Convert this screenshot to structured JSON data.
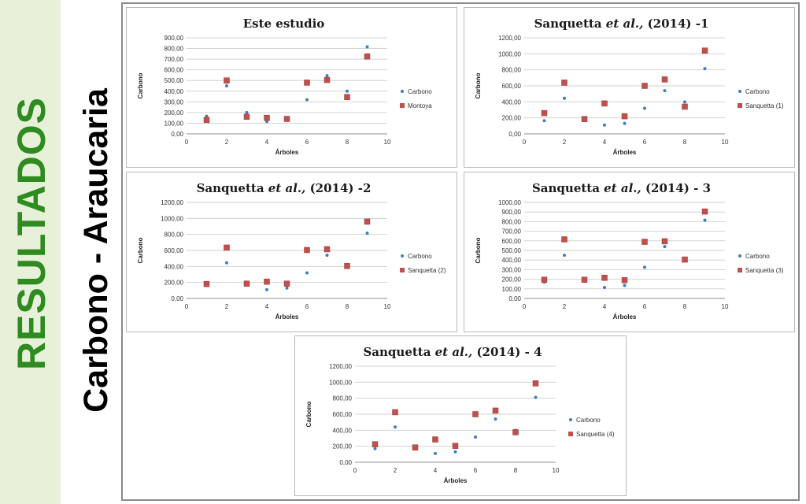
{
  "sidebar": {
    "title_results": "RESULTADOS",
    "title_subject": "Carbono - Araucaria"
  },
  "colors": {
    "carbono": "#3f7ebf",
    "comparison": "#c0504d",
    "sidebar_bg": "#e7f1d9",
    "results_text": "#2e8b1f"
  },
  "chart_data": [
    {
      "type": "scatter",
      "title_main": "Este estudio",
      "title_italic": "",
      "title_suffix": "",
      "xlabel": "Árboles",
      "ylabel": "Carbono",
      "xlim": [
        0,
        10
      ],
      "ylim": [
        0,
        900
      ],
      "yticks_step": 100,
      "xtick_labels": [
        "0",
        "2",
        "4",
        "6",
        "8",
        "10"
      ],
      "ytick_labels": [
        "0,00",
        "100,00",
        "200,00",
        "300,00",
        "400,00",
        "500,00",
        "600,00",
        "700,00",
        "800,00",
        "900,00"
      ],
      "series": [
        {
          "name": "Carbono",
          "marker": "dot",
          "x": [
            1,
            2,
            3,
            4,
            5,
            6,
            7,
            8,
            9
          ],
          "y": [
            165,
            450,
            200,
            115,
            135,
            320,
            545,
            400,
            815
          ]
        },
        {
          "name": "Montoya",
          "marker": "square",
          "x": [
            1,
            2,
            3,
            4,
            5,
            6,
            7,
            8,
            9
          ],
          "y": [
            130,
            500,
            160,
            150,
            140,
            480,
            505,
            345,
            725
          ]
        }
      ],
      "legend": "right"
    },
    {
      "type": "scatter",
      "title_main": "Sanquetta ",
      "title_italic": "et al.,",
      "title_suffix": " (2014) -1",
      "xlabel": "Árboles",
      "ylabel": "Carbono",
      "xlim": [
        0,
        10
      ],
      "ylim": [
        0,
        1200
      ],
      "yticks_step": 200,
      "xtick_labels": [
        "0",
        "2",
        "4",
        "6",
        "8",
        "10"
      ],
      "ytick_labels": [
        "0,00",
        "200,00",
        "400,00",
        "600,00",
        "800,00",
        "1000,00",
        "1200,00"
      ],
      "series": [
        {
          "name": "Carbono",
          "marker": "dot",
          "x": [
            1,
            2,
            3,
            4,
            5,
            6,
            7,
            8,
            9
          ],
          "y": [
            165,
            445,
            195,
            110,
            130,
            320,
            540,
            400,
            815
          ]
        },
        {
          "name": "Sanquetta (1)",
          "marker": "square",
          "x": [
            1,
            2,
            3,
            4,
            5,
            6,
            7,
            8,
            9
          ],
          "y": [
            260,
            640,
            185,
            380,
            220,
            600,
            680,
            340,
            1040
          ]
        }
      ],
      "legend": "right"
    },
    {
      "type": "scatter",
      "title_main": "Sanquetta ",
      "title_italic": "et al.,",
      "title_suffix": " (2014) -2",
      "xlabel": "Árboles",
      "ylabel": "Carbono",
      "xlim": [
        0,
        10
      ],
      "ylim": [
        0,
        1200
      ],
      "yticks_step": 200,
      "xtick_labels": [
        "0",
        "2",
        "4",
        "6",
        "8",
        "10"
      ],
      "ytick_labels": [
        "0,00",
        "200,00",
        "400,00",
        "600,00",
        "800,00",
        "1000,00",
        "1200,00"
      ],
      "series": [
        {
          "name": "Carbono",
          "marker": "dot",
          "x": [
            1,
            2,
            3,
            4,
            5,
            6,
            7,
            8,
            9
          ],
          "y": [
            170,
            445,
            190,
            110,
            130,
            320,
            540,
            400,
            815
          ]
        },
        {
          "name": "Sanquetta (2)",
          "marker": "square",
          "x": [
            1,
            2,
            3,
            4,
            5,
            6,
            7,
            8,
            9
          ],
          "y": [
            180,
            635,
            185,
            210,
            185,
            605,
            615,
            405,
            960
          ]
        }
      ],
      "legend": "right"
    },
    {
      "type": "scatter",
      "title_main": "Sanquetta ",
      "title_italic": "et al.,",
      "title_suffix": " (2014) - 3",
      "xlabel": "Árboles",
      "ylabel": "Carbono",
      "xlim": [
        0,
        10
      ],
      "ylim": [
        0,
        1000
      ],
      "yticks_step": 100,
      "xtick_labels": [
        "0",
        "2",
        "4",
        "6",
        "8",
        "10"
      ],
      "ytick_labels": [
        "0,00",
        "100,00",
        "200,00",
        "300,00",
        "400,00",
        "500,00",
        "600,00",
        "700,00",
        "800,00",
        "900,00",
        "1000,00"
      ],
      "series": [
        {
          "name": "Carbono",
          "marker": "dot",
          "x": [
            1,
            2,
            3,
            4,
            5,
            6,
            7,
            8,
            9
          ],
          "y": [
            170,
            450,
            190,
            115,
            135,
            325,
            540,
            400,
            815
          ]
        },
        {
          "name": "Sanquetta (3)",
          "marker": "square",
          "x": [
            1,
            2,
            3,
            4,
            5,
            6,
            7,
            8,
            9
          ],
          "y": [
            195,
            615,
            195,
            215,
            190,
            590,
            595,
            405,
            905
          ]
        }
      ],
      "legend": "right"
    },
    {
      "type": "scatter",
      "title_main": "Sanquetta ",
      "title_italic": "et al.,",
      "title_suffix": " (2014) - 4",
      "xlabel": "Árboles",
      "ylabel": "Carbono",
      "xlim": [
        0,
        10
      ],
      "ylim": [
        0,
        1200
      ],
      "yticks_step": 200,
      "xtick_labels": [
        "0",
        "2",
        "4",
        "6",
        "8",
        "10"
      ],
      "ytick_labels": [
        "0,00",
        "200,00",
        "400,00",
        "600,00",
        "800,00",
        "1000,00",
        "1200,00"
      ],
      "series": [
        {
          "name": "Carbono",
          "marker": "dot",
          "x": [
            1,
            2,
            3,
            4,
            5,
            6,
            7,
            8,
            9
          ],
          "y": [
            170,
            440,
            185,
            110,
            130,
            315,
            540,
            400,
            810
          ]
        },
        {
          "name": "Sanquetta (4)",
          "marker": "square",
          "x": [
            1,
            2,
            3,
            4,
            5,
            6,
            7,
            8,
            9
          ],
          "y": [
            225,
            625,
            185,
            285,
            205,
            600,
            645,
            375,
            985
          ]
        }
      ],
      "legend": "right"
    }
  ]
}
